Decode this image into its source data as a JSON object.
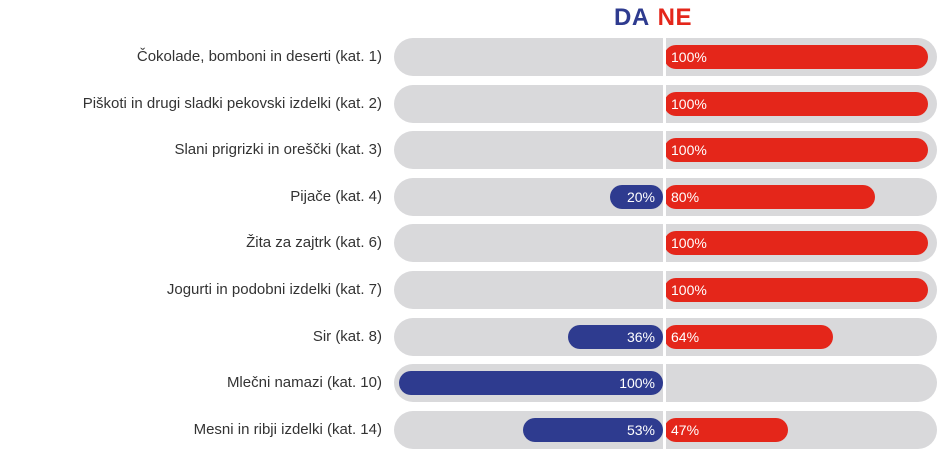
{
  "legend": {
    "da": "DA",
    "ne": "NE"
  },
  "colors": {
    "da": "#2e3b8f",
    "ne": "#e4261a",
    "track": "#d9d9db"
  },
  "chart_data": {
    "type": "bar",
    "orientation": "horizontal-diverging",
    "categories": [
      "Čokolade, bomboni in deserti (kat. 1)",
      "Piškoti in drugi sladki pekovski izdelki (kat. 2)",
      "Slani prigrizki in oreščki (kat. 3)",
      "Pijače (kat. 4)",
      "Žita za zajtrk (kat. 6)",
      "Jogurti in podobni izdelki (kat. 7)",
      "Sir (kat. 8)",
      "Mlečni namazi (kat. 10)",
      "Mesni in ribji izdelki (kat. 14)"
    ],
    "series": [
      {
        "name": "DA",
        "values": [
          0,
          0,
          0,
          20,
          0,
          0,
          36,
          100,
          53
        ]
      },
      {
        "name": "NE",
        "values": [
          100,
          100,
          100,
          80,
          100,
          100,
          64,
          0,
          47
        ]
      }
    ],
    "unit": "%",
    "xlim": [
      0,
      100
    ]
  }
}
